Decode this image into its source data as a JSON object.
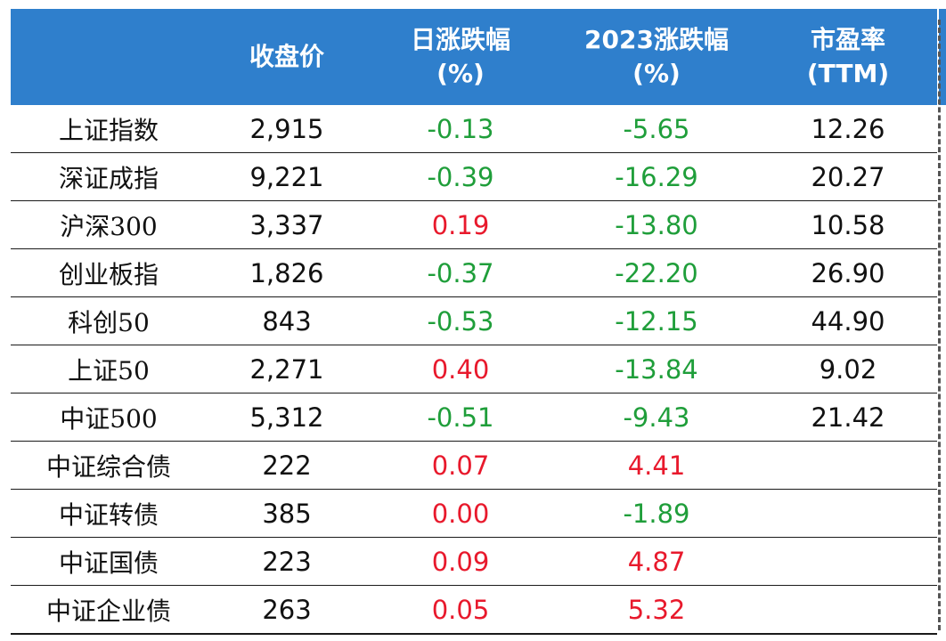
{
  "table": {
    "headers": [
      {
        "line1": "",
        "line2": ""
      },
      {
        "line1": "收盘价",
        "line2": ""
      },
      {
        "line1": "日涨跌幅",
        "line2": "(%)"
      },
      {
        "line1": "2023涨跌幅",
        "line2": "(%)"
      },
      {
        "line1": "市盈率",
        "line2": "(TTM)"
      }
    ],
    "rows": [
      {
        "name": "上证指数",
        "close": "2,915",
        "daily": "-0.13",
        "ytd": "-5.65",
        "pe": "12.26"
      },
      {
        "name": "深证成指",
        "close": "9,221",
        "daily": "-0.39",
        "ytd": "-16.29",
        "pe": "20.27"
      },
      {
        "name": "沪深300",
        "close": "3,337",
        "daily": "0.19",
        "ytd": "-13.80",
        "pe": "10.58"
      },
      {
        "name": "创业板指",
        "close": "1,826",
        "daily": "-0.37",
        "ytd": "-22.20",
        "pe": "26.90"
      },
      {
        "name": "科创50",
        "close": "843",
        "daily": "-0.53",
        "ytd": "-12.15",
        "pe": "44.90"
      },
      {
        "name": "上证50",
        "close": "2,271",
        "daily": "0.40",
        "ytd": "-13.84",
        "pe": "9.02"
      },
      {
        "name": "中证500",
        "close": "5,312",
        "daily": "-0.51",
        "ytd": "-9.43",
        "pe": "21.42"
      },
      {
        "name": "中证综合债",
        "close": "222",
        "daily": "0.07",
        "ytd": "4.41",
        "pe": ""
      },
      {
        "name": "中证转债",
        "close": "385",
        "daily": "0.00",
        "ytd": "-1.89",
        "pe": ""
      },
      {
        "name": "中证国债",
        "close": "223",
        "daily": "0.09",
        "ytd": "4.87",
        "pe": ""
      },
      {
        "name": "中证企业债",
        "close": "263",
        "daily": "0.05",
        "ytd": "5.32",
        "pe": ""
      }
    ]
  },
  "colors": {
    "header_bg": "#2f7fcc",
    "positive": "#e8192c",
    "negative": "#1f9e3a"
  }
}
